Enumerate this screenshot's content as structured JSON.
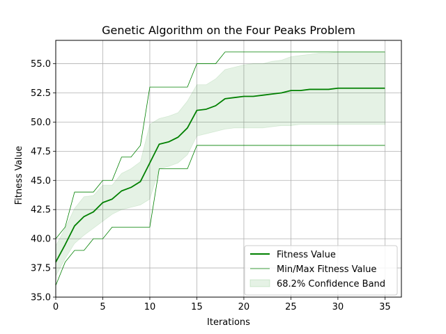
{
  "chart_data": {
    "type": "line",
    "title": "Genetic Algorithm on the Four Peaks Problem",
    "xlabel": "Iterations",
    "ylabel": "Fitness Value",
    "xlim": [
      0,
      36.75
    ],
    "ylim": [
      35.0,
      57.0
    ],
    "xticks": [
      0,
      5,
      10,
      15,
      20,
      25,
      30,
      35
    ],
    "yticks": [
      35.0,
      37.5,
      40.0,
      42.5,
      45.0,
      47.5,
      50.0,
      52.5,
      55.0
    ],
    "xtick_labels": [
      "0",
      "5",
      "10",
      "15",
      "20",
      "25",
      "30",
      "35"
    ],
    "ytick_labels": [
      "35.0",
      "37.5",
      "40.0",
      "42.5",
      "45.0",
      "47.5",
      "50.0",
      "52.5",
      "55.0"
    ],
    "grid": true,
    "legend_position": "lower-right",
    "x": [
      0,
      1,
      2,
      3,
      4,
      5,
      6,
      7,
      8,
      9,
      10,
      11,
      12,
      13,
      14,
      15,
      16,
      17,
      18,
      19,
      20,
      21,
      22,
      23,
      24,
      25,
      26,
      27,
      28,
      29,
      30,
      31,
      32,
      33,
      34,
      35
    ],
    "series": [
      {
        "name": "Fitness Value",
        "kind": "line",
        "color": "#008000",
        "values": [
          38.0,
          39.5,
          41.1,
          41.9,
          42.3,
          43.1,
          43.4,
          44.1,
          44.4,
          44.9,
          46.5,
          48.1,
          48.3,
          48.7,
          49.5,
          51.0,
          51.1,
          51.4,
          52.0,
          52.1,
          52.2,
          52.2,
          52.3,
          52.4,
          52.5,
          52.7,
          52.7,
          52.8,
          52.8,
          52.8,
          52.9,
          52.9,
          52.9,
          52.9,
          52.9,
          52.9
        ]
      },
      {
        "name": "Min/Max Fitness Value",
        "kind": "thin-line",
        "color": "#008000",
        "max": [
          40.0,
          41.0,
          44.0,
          44.0,
          44.0,
          45.0,
          45.0,
          47.0,
          47.0,
          48.0,
          53.0,
          53.0,
          53.0,
          53.0,
          53.0,
          55.0,
          55.0,
          55.0,
          56.0,
          56.0,
          56.0,
          56.0,
          56.0,
          56.0,
          56.0,
          56.0,
          56.0,
          56.0,
          56.0,
          56.0,
          56.0,
          56.0,
          56.0,
          56.0,
          56.0,
          56.0
        ],
        "min": [
          36.0,
          38.0,
          39.0,
          39.0,
          40.0,
          40.0,
          41.0,
          41.0,
          41.0,
          41.0,
          41.0,
          46.0,
          46.0,
          46.0,
          46.0,
          48.0,
          48.0,
          48.0,
          48.0,
          48.0,
          48.0,
          48.0,
          48.0,
          48.0,
          48.0,
          48.0,
          48.0,
          48.0,
          48.0,
          48.0,
          48.0,
          48.0,
          48.0,
          48.0,
          48.0,
          48.0
        ]
      },
      {
        "name": "68.2% Confidence Band",
        "kind": "band",
        "color": "#008000",
        "upper": [
          39.4,
          40.9,
          42.6,
          43.6,
          43.7,
          44.6,
          44.6,
          45.6,
          46.0,
          46.6,
          49.8,
          50.3,
          50.5,
          50.8,
          51.8,
          53.2,
          53.2,
          53.7,
          54.5,
          54.7,
          54.9,
          55.0,
          55.0,
          55.2,
          55.3,
          55.6,
          55.7,
          55.8,
          55.9,
          55.9,
          56.0,
          56.0,
          56.0,
          56.0,
          56.0,
          56.0
        ],
        "lower": [
          36.8,
          38.3,
          39.6,
          40.3,
          40.9,
          41.5,
          42.1,
          42.5,
          42.7,
          42.9,
          43.4,
          46.0,
          46.2,
          46.5,
          47.2,
          48.8,
          49.0,
          49.2,
          49.4,
          49.5,
          49.5,
          49.5,
          49.5,
          49.6,
          49.7,
          49.7,
          49.8,
          49.8,
          49.8,
          49.8,
          49.8,
          49.8,
          49.8,
          49.8,
          49.8,
          49.8
        ]
      }
    ]
  }
}
